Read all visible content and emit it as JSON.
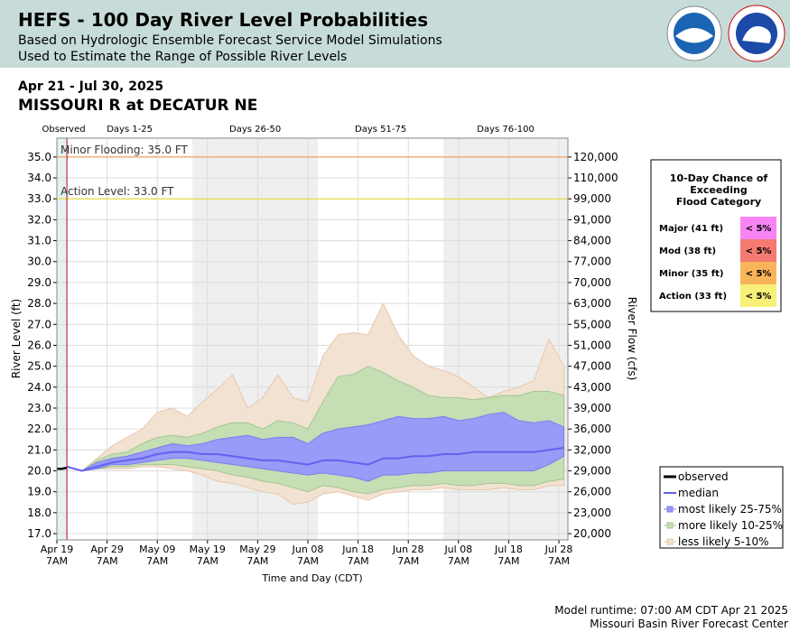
{
  "header": {
    "title": "HEFS - 100 Day River Level Probabilities",
    "subtitle1": "Based on Hydrologic Ensemble Forecast Service Model Simulations",
    "subtitle2": "Used to Estimate the Range of Possible River Levels"
  },
  "chart_data": {
    "type": "band",
    "date_range": "Apr 21 - Jul 30, 2025",
    "title": "MISSOURI R at DECATUR NE",
    "ylabel": "River Level (ft)",
    "y2label": "River Flow (cfs)",
    "xlabel": "Time and Day (CDT)",
    "xlim": [
      "2025-04-19T07:00",
      "2025-07-30T02:00"
    ],
    "ylim": [
      16.7,
      35.9
    ],
    "grid": true,
    "yticks": [
      {
        "value": 17,
        "label": "17.0"
      },
      {
        "value": 18,
        "label": "18.0"
      },
      {
        "value": 19,
        "label": "19.0"
      },
      {
        "value": 20,
        "label": "20.0"
      },
      {
        "value": 21,
        "label": "21.0"
      },
      {
        "value": 22,
        "label": "22.0"
      },
      {
        "value": 23,
        "label": "23.0"
      },
      {
        "value": 24,
        "label": "24.0"
      },
      {
        "value": 25,
        "label": "25.0"
      },
      {
        "value": 26,
        "label": "26.0"
      },
      {
        "value": 27,
        "label": "27.0"
      },
      {
        "value": 28,
        "label": "28.0"
      },
      {
        "value": 29,
        "label": "29.0"
      },
      {
        "value": 30,
        "label": "30.0"
      },
      {
        "value": 31,
        "label": "31.0"
      },
      {
        "value": 32,
        "label": "32.0"
      },
      {
        "value": 33,
        "label": "33.0"
      },
      {
        "value": 34,
        "label": "34.0"
      },
      {
        "value": 35,
        "label": "35.0"
      }
    ],
    "y2ticks": [
      {
        "value": 20000,
        "label": "20,000"
      },
      {
        "value": 23000,
        "label": "23,000"
      },
      {
        "value": 26000,
        "label": "26,000"
      },
      {
        "value": 29000,
        "label": "29,000"
      },
      {
        "value": 32000,
        "label": "32,000"
      },
      {
        "value": 36000,
        "label": "36,000"
      },
      {
        "value": 39000,
        "label": "39,000"
      },
      {
        "value": 43000,
        "label": "43,000"
      },
      {
        "value": 47000,
        "label": "47,000"
      },
      {
        "value": 51000,
        "label": "51,000"
      },
      {
        "value": 55000,
        "label": "55,000"
      },
      {
        "value": 63000,
        "label": "63,000"
      },
      {
        "value": 70000,
        "label": "70,000"
      },
      {
        "value": 77000,
        "label": "77,000"
      },
      {
        "value": 84000,
        "label": "84,000"
      },
      {
        "value": 91000,
        "label": "91,000"
      },
      {
        "value": 99000,
        "label": "99,000"
      },
      {
        "value": 110000,
        "label": "110,000"
      },
      {
        "value": 120000,
        "label": "120,000"
      }
    ],
    "xticks": [
      {
        "value": "2025-04-19T07:00",
        "label": "Apr 19",
        "time": "7AM"
      },
      {
        "value": "2025-04-29T07:00",
        "label": "Apr 29",
        "time": "7AM"
      },
      {
        "value": "2025-05-09T07:00",
        "label": "May 09",
        "time": "7AM"
      },
      {
        "value": "2025-05-19T07:00",
        "label": "May 19",
        "time": "7AM"
      },
      {
        "value": "2025-05-29T07:00",
        "label": "May 29",
        "time": "7AM"
      },
      {
        "value": "2025-06-08T07:00",
        "label": "Jun 08",
        "time": "7AM"
      },
      {
        "value": "2025-06-18T07:00",
        "label": "Jun 18",
        "time": "7AM"
      },
      {
        "value": "2025-06-28T07:00",
        "label": "Jun 28",
        "time": "7AM"
      },
      {
        "value": "2025-07-08T07:00",
        "label": "Jul 08",
        "time": "7AM"
      },
      {
        "value": "2025-07-18T07:00",
        "label": "Jul 18",
        "time": "7AM"
      },
      {
        "value": "2025-07-28T07:00",
        "label": "Jul 28",
        "time": "7AM"
      }
    ],
    "periods": [
      {
        "label": "Observed",
        "start": "2025-04-19T07:00",
        "end": "2025-04-21T07:00",
        "color": "#e4f2f2"
      },
      {
        "label": "Days 1-25",
        "start": "2025-04-21T07:00",
        "end": "2025-05-16T07:00",
        "color": "#ffffff"
      },
      {
        "label": "Days 26-50",
        "start": "2025-05-16T07:00",
        "end": "2025-06-10T07:00",
        "color": "#efefef"
      },
      {
        "label": "Days 51-75",
        "start": "2025-06-10T07:00",
        "end": "2025-07-05T07:00",
        "color": "#ffffff"
      },
      {
        "label": "Days 76-100",
        "start": "2025-07-05T07:00",
        "end": "2025-07-30T02:00",
        "color": "#efefef"
      }
    ],
    "forecast_start": "2025-04-21T07:00",
    "flood_levels": [
      {
        "label": "Minor Flooding: 35.0 FT",
        "value": 35,
        "color": "#f0a060"
      },
      {
        "label": "Action Level: 33.0 FT",
        "value": 33,
        "color": "#e6e048"
      }
    ],
    "observed": {
      "name": "observed",
      "color": "#000000",
      "x": [
        "2025-04-19T07:00",
        "2025-04-20T07:00",
        "2025-04-21T07:00"
      ],
      "values": [
        20.1,
        20.1,
        20.15
      ]
    },
    "x": [
      "2025-04-21T07:00",
      "2025-04-24T07:00",
      "2025-04-27T07:00",
      "2025-04-30T07:00",
      "2025-05-03T07:00",
      "2025-05-06T07:00",
      "2025-05-09T07:00",
      "2025-05-12T07:00",
      "2025-05-15T07:00",
      "2025-05-18T07:00",
      "2025-05-21T07:00",
      "2025-05-24T07:00",
      "2025-05-27T07:00",
      "2025-05-30T07:00",
      "2025-06-02T07:00",
      "2025-06-05T07:00",
      "2025-06-08T07:00",
      "2025-06-11T07:00",
      "2025-06-14T07:00",
      "2025-06-17T07:00",
      "2025-06-20T07:00",
      "2025-06-23T07:00",
      "2025-06-26T07:00",
      "2025-06-29T07:00",
      "2025-07-02T07:00",
      "2025-07-05T07:00",
      "2025-07-08T07:00",
      "2025-07-11T07:00",
      "2025-07-14T07:00",
      "2025-07-17T07:00",
      "2025-07-20T07:00",
      "2025-07-23T07:00",
      "2025-07-26T07:00",
      "2025-07-29T07:00"
    ],
    "series": [
      {
        "name": "less likely 5-10%",
        "color": "#f2e2d2",
        "stroke": "#e6c8ae",
        "lower": [
          20.2,
          20.0,
          20.1,
          20.1,
          20.1,
          20.2,
          20.2,
          20.1,
          20.0,
          19.8,
          19.5,
          19.4,
          19.2,
          19.0,
          18.9,
          18.4,
          18.5,
          18.9,
          19.0,
          18.8,
          18.6,
          18.9,
          19.0,
          19.1,
          19.1,
          19.2,
          19.1,
          19.1,
          19.1,
          19.2,
          19.1,
          19.1,
          19.3,
          19.3
        ],
        "upper": [
          20.2,
          20.0,
          20.6,
          21.2,
          21.6,
          22.0,
          22.8,
          23.0,
          22.6,
          23.3,
          23.9,
          24.6,
          23.0,
          23.5,
          24.6,
          23.5,
          23.3,
          25.5,
          26.5,
          26.6,
          26.5,
          28.0,
          26.5,
          25.5,
          25.0,
          24.8,
          24.5,
          24.0,
          23.5,
          23.8,
          24.0,
          24.3,
          26.3,
          25.0
        ]
      },
      {
        "name": "more likely 10-25%",
        "color": "#c6deb4",
        "stroke": "#a4c690",
        "lower": [
          20.2,
          20.0,
          20.1,
          20.2,
          20.2,
          20.3,
          20.3,
          20.3,
          20.2,
          20.1,
          20.0,
          19.8,
          19.7,
          19.5,
          19.4,
          19.2,
          19.0,
          19.3,
          19.2,
          19.0,
          18.9,
          19.1,
          19.2,
          19.3,
          19.3,
          19.4,
          19.3,
          19.3,
          19.4,
          19.4,
          19.3,
          19.3,
          19.5,
          19.6
        ],
        "upper": [
          20.2,
          20.0,
          20.5,
          20.8,
          20.9,
          21.3,
          21.6,
          21.7,
          21.6,
          21.8,
          22.1,
          22.3,
          22.3,
          22.0,
          22.4,
          22.3,
          22.0,
          23.3,
          24.5,
          24.6,
          25.0,
          24.7,
          24.3,
          24.0,
          23.6,
          23.5,
          23.5,
          23.4,
          23.5,
          23.6,
          23.6,
          23.8,
          23.8,
          23.6
        ]
      },
      {
        "name": "most likely 25-75%",
        "color": "#9a9af8",
        "stroke": "#7c7cf0",
        "lower": [
          20.2,
          20.0,
          20.1,
          20.3,
          20.3,
          20.4,
          20.5,
          20.6,
          20.6,
          20.5,
          20.4,
          20.3,
          20.2,
          20.1,
          20.0,
          19.9,
          19.8,
          19.9,
          19.8,
          19.7,
          19.5,
          19.8,
          19.8,
          19.9,
          19.9,
          20.0,
          20.0,
          20.0,
          20.0,
          20.0,
          20.0,
          20.0,
          20.3,
          20.7
        ],
        "upper": [
          20.2,
          20.0,
          20.4,
          20.6,
          20.7,
          20.9,
          21.1,
          21.3,
          21.2,
          21.3,
          21.5,
          21.6,
          21.7,
          21.5,
          21.6,
          21.6,
          21.3,
          21.8,
          22.0,
          22.1,
          22.2,
          22.4,
          22.6,
          22.5,
          22.5,
          22.6,
          22.4,
          22.5,
          22.7,
          22.8,
          22.4,
          22.3,
          22.4,
          22.1
        ]
      },
      {
        "name": "median",
        "color": "#6262f2",
        "values": [
          20.2,
          20.0,
          20.2,
          20.4,
          20.5,
          20.6,
          20.8,
          20.9,
          20.9,
          20.8,
          20.8,
          20.7,
          20.6,
          20.5,
          20.5,
          20.4,
          20.3,
          20.5,
          20.5,
          20.4,
          20.3,
          20.6,
          20.6,
          20.7,
          20.7,
          20.8,
          20.8,
          20.9,
          20.9,
          20.9,
          20.9,
          20.9,
          21.0,
          21.1
        ]
      }
    ],
    "flood_table": {
      "title": [
        "10-Day Chance of",
        "Exceeding",
        "Flood Category"
      ],
      "rows": [
        {
          "category": "Major (41 ft)",
          "chance": "< 5%",
          "color": "#f884f4"
        },
        {
          "category": "Mod (38 ft)",
          "chance": "< 5%",
          "color": "#f47a72"
        },
        {
          "category": "Minor (35 ft)",
          "chance": "< 5%",
          "color": "#f8b458"
        },
        {
          "category": "Action (33 ft)",
          "chance": "< 5%",
          "color": "#f8f078"
        }
      ]
    }
  },
  "footer": {
    "runtime": "Model runtime: 07:00 AM CDT Apr 21 2025",
    "center": "Missouri Basin River Forecast Center"
  }
}
